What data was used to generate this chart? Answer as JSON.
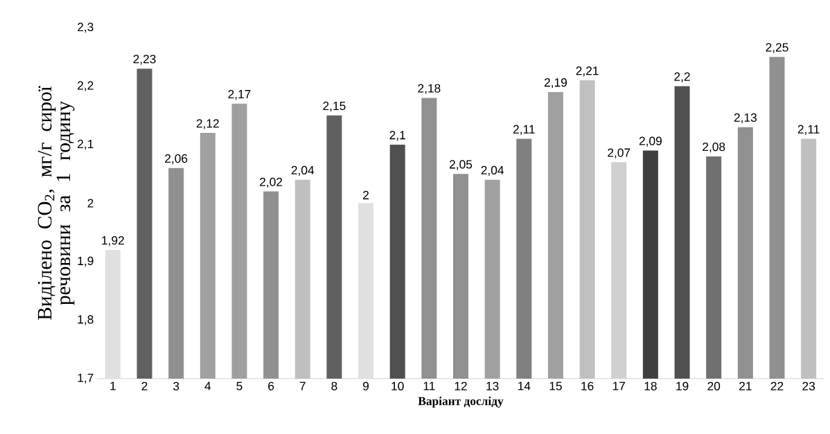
{
  "chart_data": {
    "type": "bar",
    "xlabel": "Варіант досліду",
    "ylabel": "Виділено CO$_{2}$, мг/г сирої речовини за 1 годину",
    "categories": [
      "1",
      "2",
      "3",
      "4",
      "5",
      "6",
      "7",
      "8",
      "9",
      "10",
      "11",
      "12",
      "13",
      "14",
      "15",
      "16",
      "17",
      "18",
      "19",
      "20",
      "21",
      "22",
      "23"
    ],
    "values": [
      1.92,
      2.23,
      2.06,
      2.12,
      2.17,
      2.02,
      2.04,
      2.15,
      2.0,
      2.1,
      2.18,
      2.05,
      2.04,
      2.11,
      2.19,
      2.21,
      2.07,
      2.09,
      2.2,
      2.08,
      2.13,
      2.25,
      2.11
    ],
    "value_labels": [
      "1,92",
      "2,23",
      "2,06",
      "2,12",
      "2,17",
      "2,02",
      "2,04",
      "2,15",
      "2",
      "2,1",
      "2,18",
      "2,05",
      "2,04",
      "2,11",
      "2,19",
      "2,21",
      "2,07",
      "2,09",
      "2,2",
      "2,08",
      "2,13",
      "2,25",
      "2,11"
    ],
    "colors": [
      "#e0e0e0",
      "#606060",
      "#909090",
      "#a0a0a0",
      "#a0a0a0",
      "#909090",
      "#c0c0c0",
      "#606060",
      "#e0e0e0",
      "#505050",
      "#909090",
      "#909090",
      "#a0a0a0",
      "#808080",
      "#a0a0a0",
      "#c0c0c0",
      "#d0d0d0",
      "#404040",
      "#505050",
      "#707070",
      "#909090",
      "#909090",
      "#c0c0c0"
    ],
    "ylim": [
      1.7,
      2.3
    ],
    "yticks": [
      {
        "value": 1.7,
        "label": "1,7"
      },
      {
        "value": 1.8,
        "label": "1,8"
      },
      {
        "value": 1.9,
        "label": "1,9"
      },
      {
        "value": 2.0,
        "label": "2"
      },
      {
        "value": 2.1,
        "label": "2,1"
      },
      {
        "value": 2.2,
        "label": "2,2"
      },
      {
        "value": 2.3,
        "label": "2,3"
      }
    ],
    "grid": false
  }
}
